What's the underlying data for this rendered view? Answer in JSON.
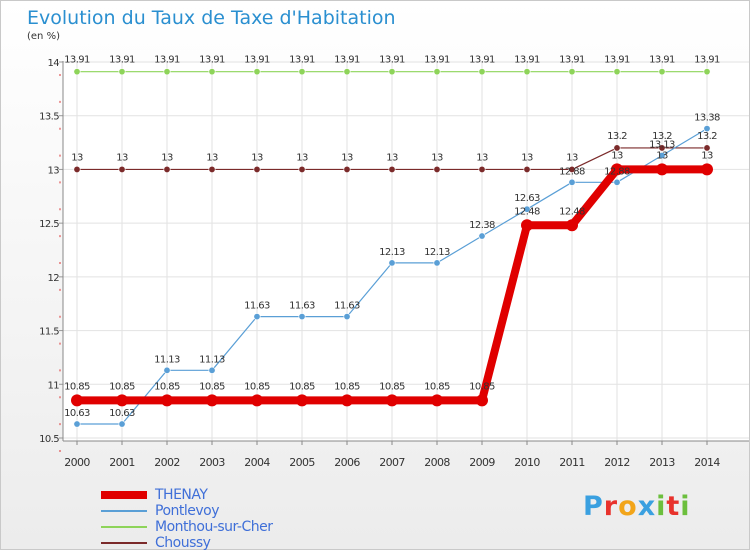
{
  "title": "Evolution du Taux de Taxe d'Habitation",
  "unit": "(en %)",
  "logo": {
    "letters": [
      "P",
      "r",
      "o",
      "x",
      "i",
      "t",
      "i"
    ],
    "colors": [
      "#3aa0e0",
      "#e8322c",
      "#f2a51a",
      "#3aa0e0",
      "#6cbf3d",
      "#e8322c",
      "#6cbf3d"
    ]
  },
  "chart_data": {
    "type": "line",
    "x": [
      "2000",
      "2001",
      "2002",
      "2003",
      "2004",
      "2005",
      "2006",
      "2007",
      "2008",
      "2009",
      "2010",
      "2011",
      "2012",
      "2013",
      "2014"
    ],
    "yticks": [
      "10.5",
      "11",
      "11.5",
      "12",
      "12.5",
      "13",
      "13.5",
      "14"
    ],
    "ylim": [
      10.5,
      14
    ],
    "series": [
      {
        "name": "THENAY",
        "color": "#e00000",
        "values": [
          10.85,
          10.85,
          10.85,
          10.85,
          10.85,
          10.85,
          10.85,
          10.85,
          10.85,
          10.85,
          12.48,
          12.48,
          13,
          13,
          13
        ],
        "labels": [
          "10.85",
          "10.85",
          "10.85",
          "10.85",
          "10.85",
          "10.85",
          "10.85",
          "10.85",
          "10.85",
          "10.85",
          "12.48",
          "12.48",
          "13",
          "13",
          "13"
        ]
      },
      {
        "name": "Pontlevoy",
        "color": "#5a9fd6",
        "values": [
          10.63,
          10.63,
          11.13,
          11.13,
          11.63,
          11.63,
          11.63,
          12.13,
          12.13,
          12.38,
          12.63,
          12.88,
          12.88,
          13.13,
          13.38
        ],
        "labels": [
          "10.63",
          "10.63",
          "11.13",
          "11.13",
          "11.63",
          "11.63",
          "11.63",
          "12.13",
          "12.13",
          "12.38",
          "12.63",
          "12.88",
          "12.88",
          "13.13",
          "13.38"
        ]
      },
      {
        "name": "Monthou-sur-Cher",
        "color": "#8ed45a",
        "values": [
          13.91,
          13.91,
          13.91,
          13.91,
          13.91,
          13.91,
          13.91,
          13.91,
          13.91,
          13.91,
          13.91,
          13.91,
          13.91,
          13.91,
          13.91
        ],
        "labels": [
          "13.91",
          "13.91",
          "13.91",
          "13.91",
          "13.91",
          "13.91",
          "13.91",
          "13.91",
          "13.91",
          "13.91",
          "13.91",
          "13.91",
          "13.91",
          "13.91",
          "13.91"
        ]
      },
      {
        "name": "Choussy",
        "color": "#7b2a2a",
        "values": [
          13,
          13,
          13,
          13,
          13,
          13,
          13,
          13,
          13,
          13,
          13,
          13,
          13.2,
          13.2,
          13.2
        ],
        "labels": [
          "13",
          "13",
          "13",
          "13",
          "13",
          "13",
          "13",
          "13",
          "13",
          "13",
          "13",
          "13",
          "13.2",
          "13.2",
          "13.2"
        ]
      }
    ]
  }
}
